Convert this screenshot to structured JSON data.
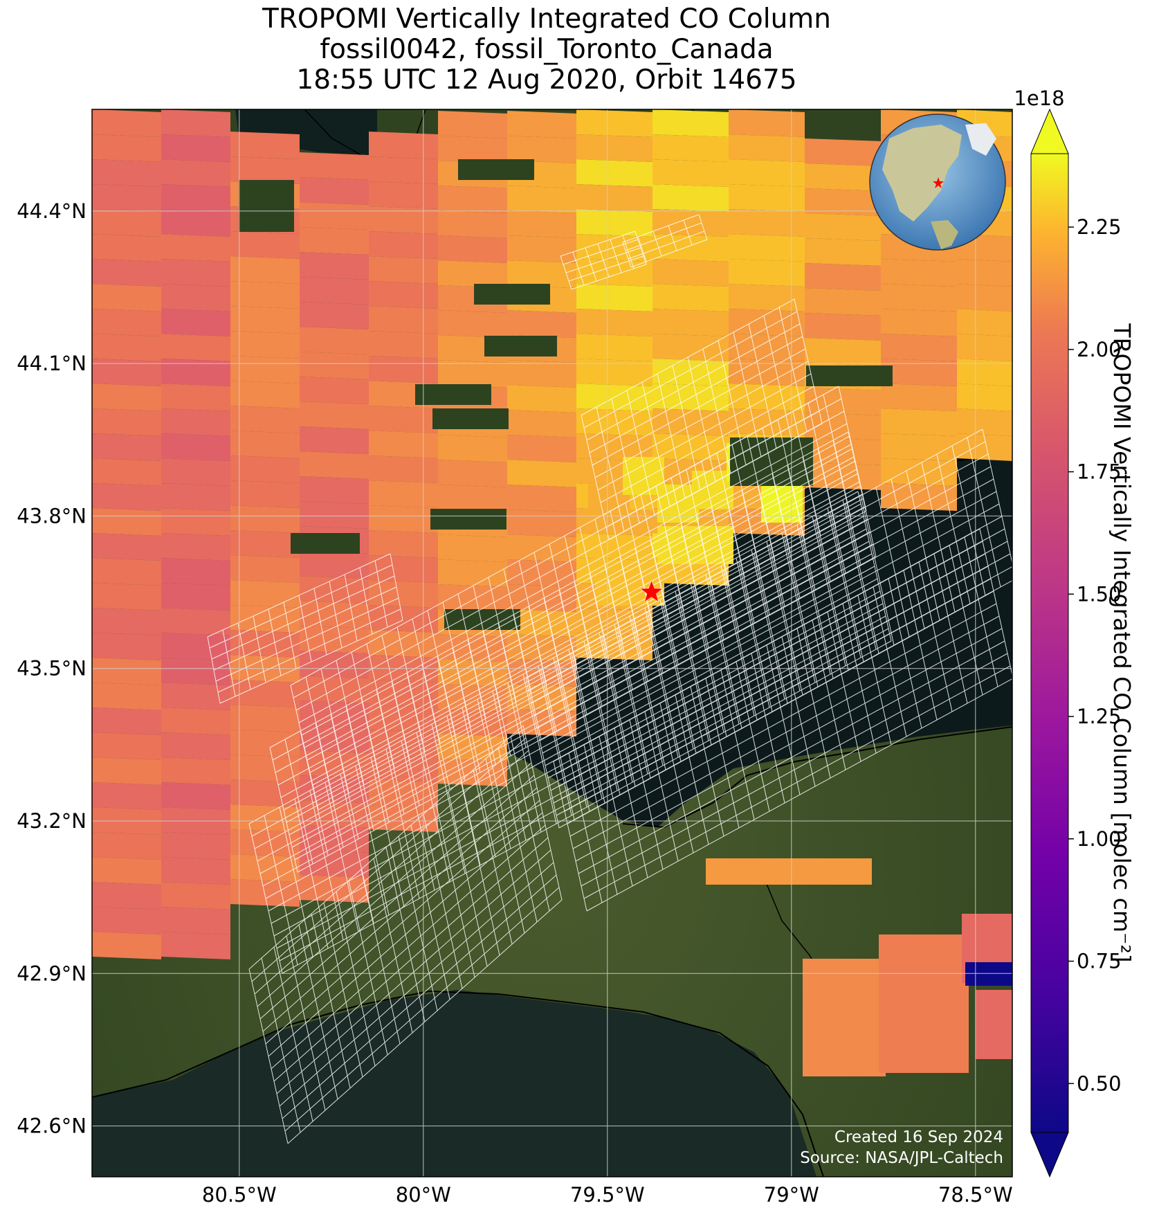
{
  "title": {
    "line1": "TROPOMI Vertically Integrated CO Column",
    "line2": "fossil0042, fossil_Toronto_Canada",
    "line3": "18:55 UTC 12 Aug 2020, Orbit 14675"
  },
  "map": {
    "lon_range": [
      -80.9,
      -78.4
    ],
    "lat_range": [
      42.5,
      44.6
    ],
    "lon_ticks": [
      {
        "value": -80.5,
        "label": "80.5°W"
      },
      {
        "value": -80.0,
        "label": "80°W"
      },
      {
        "value": -79.5,
        "label": "79.5°W"
      },
      {
        "value": -79.0,
        "label": "79°W"
      },
      {
        "value": -78.5,
        "label": "78.5°W"
      }
    ],
    "lat_ticks": [
      {
        "value": 44.4,
        "label": "44.4°N"
      },
      {
        "value": 44.1,
        "label": "44.1°N"
      },
      {
        "value": 43.8,
        "label": "43.8°N"
      },
      {
        "value": 43.5,
        "label": "43.5°N"
      },
      {
        "value": 43.2,
        "label": "43.2°N"
      },
      {
        "value": 42.9,
        "label": "42.9°N"
      },
      {
        "value": 42.6,
        "label": "42.6°N"
      }
    ],
    "target_marker": {
      "lon": -79.38,
      "lat": 43.65,
      "color": "#ff0000",
      "shape": "star"
    },
    "basemap": "satellite imagery with Lake Ontario and Lake Erie",
    "grid": true
  },
  "colorbar": {
    "label": "TROPOMI Vertically Integrated CO Column [molec cm$^{-2}$]",
    "label_display": "TROPOMI Vertically Integrated CO Column [molec cm⁻²]",
    "exponent": "1e18",
    "range": [
      0.4,
      2.4
    ],
    "ticks": [
      {
        "value": 0.5,
        "label": "0.50"
      },
      {
        "value": 0.75,
        "label": "0.75"
      },
      {
        "value": 1.0,
        "label": "1.00"
      },
      {
        "value": 1.25,
        "label": "1.25"
      },
      {
        "value": 1.5,
        "label": "1.50"
      },
      {
        "value": 1.75,
        "label": "1.75"
      },
      {
        "value": 2.0,
        "label": "2.00"
      },
      {
        "value": 2.25,
        "label": "2.25"
      }
    ],
    "colormap": "plasma",
    "extend": "both"
  },
  "credits": {
    "created": "Created 16 Sep 2024",
    "source": "Source: NASA/JPL-Caltech"
  }
}
